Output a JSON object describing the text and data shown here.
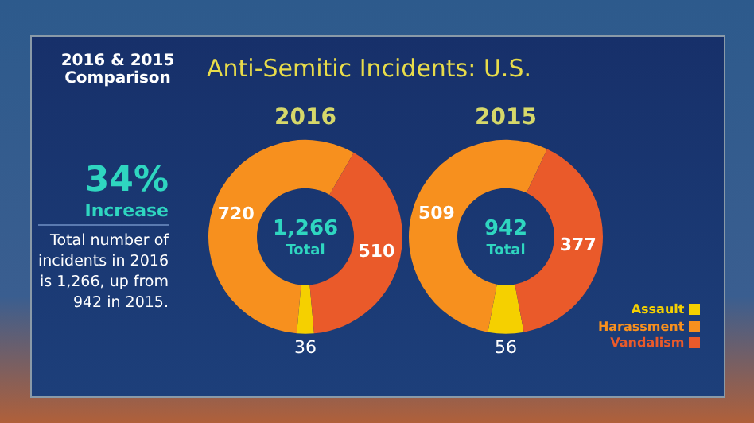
{
  "chart_data": [
    {
      "type": "other",
      "title": "Anti-Semitic Incidents: U.S.",
      "subtitle": "2016 & 2015 Comparison",
      "annotations": [
        "34%",
        "Increase",
        "Total number of incidents in 2016 is 1,266, up from 942 in 2015."
      ]
    },
    {
      "type": "donut",
      "title": "2016",
      "categories": [
        null,
        null,
        null
      ],
      "values": [
        36,
        720,
        510
      ],
      "colors": [
        "#f5d000",
        "#f7901e",
        "#ea5a2a"
      ],
      "data_labels": true,
      "annotations": [
        "1,266",
        "Total"
      ]
    },
    {
      "type": "donut",
      "title": "2015",
      "categories": [
        "Assault",
        "Harassment",
        "Vandalism"
      ],
      "values": [
        56,
        509,
        377
      ],
      "colors": [
        "#f5d000",
        "#f7901e",
        "#ea5a2a"
      ],
      "data_labels": true,
      "annotations": [
        "942",
        "Total"
      ],
      "legend": "bottom right"
    }
  ]
}
